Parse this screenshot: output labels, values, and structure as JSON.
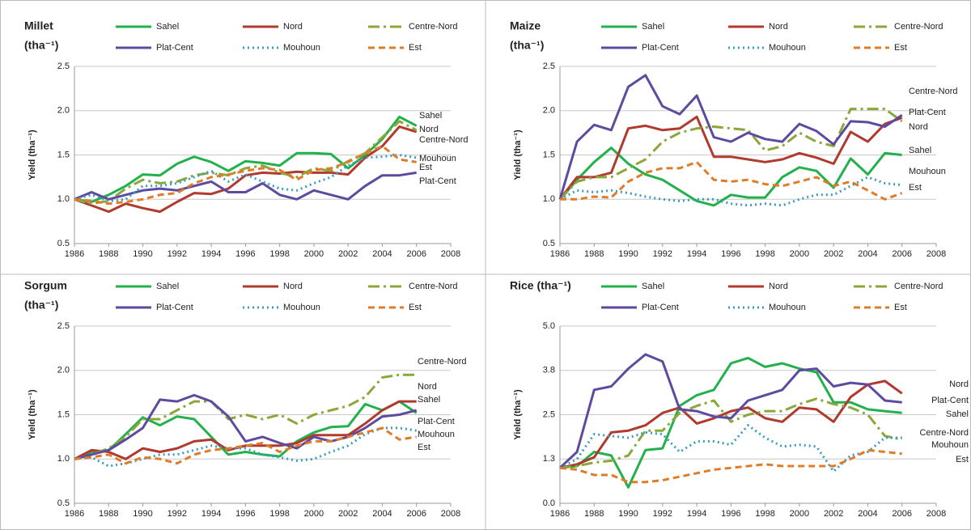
{
  "chart_data": [
    {
      "type": "line",
      "title": "Millet",
      "subtitle": "(tha⁻¹)",
      "y_label": "Yield (tha⁻¹)",
      "x": [
        1986,
        1987,
        1988,
        1989,
        1990,
        1991,
        1992,
        1993,
        1994,
        1995,
        1996,
        1997,
        1998,
        1999,
        2000,
        2001,
        2002,
        2003,
        2004,
        2005,
        2006
      ],
      "xlim": [
        1986,
        2008
      ],
      "xticks": [
        1986,
        1988,
        1990,
        1992,
        1994,
        1996,
        1998,
        2000,
        2002,
        2004,
        2006,
        2008
      ],
      "ylim": [
        0.5,
        2.5
      ],
      "yticks": [
        0.5,
        {
          "value": 1,
          "label": "1.0"
        },
        1.5,
        {
          "value": 2,
          "label": "2.0"
        },
        2.5
      ],
      "grid": true,
      "series": [
        {
          "name": "Sahel",
          "color": "#22b14c",
          "style": "solid",
          "values": [
            1.0,
            0.97,
            1.05,
            1.15,
            1.28,
            1.27,
            1.4,
            1.48,
            1.42,
            1.32,
            1.43,
            1.41,
            1.38,
            1.52,
            1.52,
            1.51,
            1.35,
            1.5,
            1.68,
            1.93,
            1.83
          ]
        },
        {
          "name": "Nord",
          "color": "#b03a2e",
          "style": "solid",
          "values": [
            1.0,
            0.93,
            0.86,
            0.95,
            0.9,
            0.86,
            0.97,
            1.07,
            1.06,
            1.12,
            1.27,
            1.3,
            1.29,
            1.31,
            1.3,
            1.3,
            1.28,
            1.47,
            1.6,
            1.82,
            1.76
          ]
        },
        {
          "name": "Centre-Nord",
          "color": "#8aa83a",
          "style": "dashdot",
          "values": [
            1.0,
            0.95,
            0.98,
            1.12,
            1.22,
            1.18,
            1.2,
            1.27,
            1.3,
            1.27,
            1.35,
            1.38,
            1.3,
            1.25,
            1.35,
            1.32,
            1.43,
            1.52,
            1.7,
            1.88,
            1.78
          ]
        },
        {
          "name": "Plat-Cent",
          "color": "#5e4a9e",
          "style": "solid",
          "values": [
            1.0,
            1.08,
            1.0,
            1.05,
            1.1,
            1.12,
            1.1,
            1.15,
            1.2,
            1.08,
            1.08,
            1.18,
            1.05,
            1.0,
            1.1,
            1.05,
            1.0,
            1.15,
            1.27,
            1.27,
            1.3
          ]
        },
        {
          "name": "Mouhoun",
          "color": "#3a9cc0",
          "style": "dotted",
          "values": [
            1.0,
            1.05,
            0.98,
            1.0,
            1.15,
            1.15,
            1.18,
            1.25,
            1.32,
            1.2,
            1.28,
            1.2,
            1.12,
            1.1,
            1.18,
            1.25,
            1.38,
            1.47,
            1.48,
            1.5,
            1.47
          ]
        },
        {
          "name": "Est",
          "color": "#e07b28",
          "style": "dashed",
          "values": [
            1.0,
            0.98,
            0.95,
            0.97,
            1.0,
            1.05,
            1.07,
            1.18,
            1.25,
            1.28,
            1.32,
            1.35,
            1.33,
            1.22,
            1.33,
            1.35,
            1.42,
            1.52,
            1.6,
            1.45,
            1.42
          ]
        }
      ],
      "annotations": [
        "Sahel",
        "Nord",
        "Centre-Nord",
        "Mouhoun",
        "Est",
        "Plat-Cent"
      ]
    },
    {
      "type": "line",
      "title": "Maize",
      "subtitle": "(tha⁻¹)",
      "y_label": "Yield (tha⁻¹)",
      "x": [
        1986,
        1987,
        1988,
        1989,
        1990,
        1991,
        1992,
        1993,
        1994,
        1995,
        1996,
        1997,
        1998,
        1999,
        2000,
        2001,
        2002,
        2003,
        2004,
        2005,
        2006
      ],
      "xlim": [
        1986,
        2008
      ],
      "xticks": [
        1986,
        1988,
        1990,
        1992,
        1994,
        1996,
        1998,
        2000,
        2002,
        2004,
        2006,
        2008
      ],
      "ylim": [
        0.5,
        2.5
      ],
      "yticks": [
        0.5,
        {
          "value": 1,
          "label": "1.0"
        },
        1.5,
        {
          "value": 2,
          "label": "2.0"
        },
        2.5
      ],
      "grid": true,
      "series": [
        {
          "name": "Sahel",
          "color": "#22b14c",
          "style": "solid",
          "values": [
            1.0,
            1.22,
            1.42,
            1.58,
            1.4,
            1.28,
            1.22,
            1.1,
            0.98,
            0.93,
            1.05,
            1.02,
            1.02,
            1.25,
            1.36,
            1.32,
            1.13,
            1.46,
            1.28,
            1.52,
            1.5
          ]
        },
        {
          "name": "Nord",
          "color": "#b03a2e",
          "style": "solid",
          "values": [
            1.0,
            1.25,
            1.25,
            1.3,
            1.8,
            1.83,
            1.78,
            1.8,
            1.93,
            1.48,
            1.48,
            1.45,
            1.42,
            1.45,
            1.52,
            1.47,
            1.4,
            1.76,
            1.65,
            1.85,
            1.92
          ]
        },
        {
          "name": "Centre-Nord",
          "color": "#8aa83a",
          "style": "dashdot",
          "values": [
            1.0,
            1.2,
            1.25,
            1.25,
            1.35,
            1.45,
            1.65,
            1.75,
            1.8,
            1.82,
            1.8,
            1.78,
            1.55,
            1.6,
            1.75,
            1.65,
            1.6,
            2.02,
            2.02,
            2.02,
            1.88
          ]
        },
        {
          "name": "Plat-Cent",
          "color": "#5e4a9e",
          "style": "solid",
          "values": [
            1.0,
            1.65,
            1.84,
            1.78,
            2.27,
            2.4,
            2.05,
            1.96,
            2.17,
            1.7,
            1.65,
            1.75,
            1.68,
            1.65,
            1.85,
            1.77,
            1.62,
            1.88,
            1.87,
            1.82,
            1.95
          ]
        },
        {
          "name": "Mouhoun",
          "color": "#3a9cc0",
          "style": "dotted",
          "values": [
            1.0,
            1.1,
            1.08,
            1.1,
            1.07,
            1.03,
            1.0,
            0.98,
            1.0,
            1.0,
            0.95,
            0.93,
            0.95,
            0.93,
            1.0,
            1.05,
            1.05,
            1.15,
            1.25,
            1.18,
            1.16
          ]
        },
        {
          "name": "Est",
          "color": "#e07b28",
          "style": "dashed",
          "values": [
            1.0,
            1.0,
            1.03,
            1.02,
            1.2,
            1.3,
            1.35,
            1.35,
            1.42,
            1.22,
            1.2,
            1.22,
            1.17,
            1.15,
            1.2,
            1.25,
            1.15,
            1.2,
            1.1,
            1.0,
            1.07
          ]
        }
      ],
      "annotations": [
        "Centre-Nord",
        "Plat-Cent",
        "Nord",
        "Sahel",
        "Mouhoun",
        "Est"
      ]
    },
    {
      "type": "line",
      "title": "Sorgum",
      "subtitle": "(tha⁻¹)",
      "y_label": "Yield (tha⁻¹)",
      "x": [
        1986,
        1987,
        1988,
        1989,
        1990,
        1991,
        1992,
        1993,
        1994,
        1995,
        1996,
        1997,
        1998,
        1999,
        2000,
        2001,
        2002,
        2003,
        2004,
        2005,
        2006
      ],
      "xlim": [
        1986,
        2008
      ],
      "xticks": [
        1986,
        1988,
        1990,
        1992,
        1994,
        1996,
        1998,
        2000,
        2002,
        2004,
        2006,
        2008
      ],
      "ylim": [
        0.5,
        2.5
      ],
      "yticks": [
        0.5,
        {
          "value": 1,
          "label": "1.0"
        },
        1.5,
        {
          "value": 2,
          "label": "2.0"
        },
        2.5
      ],
      "grid": true,
      "series": [
        {
          "name": "Sahel",
          "color": "#22b14c",
          "style": "solid",
          "values": [
            1.0,
            1.08,
            1.1,
            1.28,
            1.47,
            1.38,
            1.48,
            1.45,
            1.25,
            1.05,
            1.08,
            1.05,
            1.03,
            1.2,
            1.3,
            1.36,
            1.37,
            1.62,
            1.55,
            1.65,
            1.52
          ]
        },
        {
          "name": "Nord",
          "color": "#b03a2e",
          "style": "solid",
          "values": [
            1.0,
            1.1,
            1.08,
            1.0,
            1.12,
            1.08,
            1.12,
            1.2,
            1.22,
            1.1,
            1.15,
            1.15,
            1.15,
            1.18,
            1.27,
            1.27,
            1.27,
            1.4,
            1.55,
            1.65,
            1.65
          ]
        },
        {
          "name": "Centre-Nord",
          "color": "#8aa83a",
          "style": "dashdot",
          "values": [
            1.0,
            1.05,
            1.12,
            1.25,
            1.45,
            1.45,
            1.55,
            1.65,
            1.65,
            1.45,
            1.5,
            1.45,
            1.5,
            1.4,
            1.5,
            1.55,
            1.6,
            1.7,
            1.92,
            1.95,
            1.95
          ]
        },
        {
          "name": "Plat-Cent",
          "color": "#5e4a9e",
          "style": "solid",
          "values": [
            1.0,
            1.05,
            1.1,
            1.22,
            1.35,
            1.67,
            1.65,
            1.72,
            1.65,
            1.48,
            1.2,
            1.25,
            1.18,
            1.12,
            1.25,
            1.2,
            1.25,
            1.35,
            1.48,
            1.5,
            1.55
          ]
        },
        {
          "name": "Mouhoun",
          "color": "#3a9cc0",
          "style": "dotted",
          "values": [
            1.0,
            1.02,
            0.92,
            0.95,
            1.0,
            1.05,
            1.05,
            1.1,
            1.15,
            1.12,
            1.12,
            1.05,
            1.02,
            0.98,
            1.0,
            1.08,
            1.15,
            1.28,
            1.35,
            1.35,
            1.32
          ]
        },
        {
          "name": "Est",
          "color": "#e07b28",
          "style": "dashed",
          "values": [
            1.0,
            1.02,
            1.05,
            0.95,
            1.02,
            1.0,
            0.95,
            1.05,
            1.1,
            1.12,
            1.15,
            1.18,
            1.08,
            1.15,
            1.2,
            1.2,
            1.25,
            1.3,
            1.35,
            1.22,
            1.25
          ]
        }
      ],
      "annotations": [
        "Centre-Nord",
        "Nord",
        "Sahel",
        "Plat-Cent",
        "Mouhoun",
        "Est"
      ]
    },
    {
      "type": "line",
      "title": "Rice (tha⁻¹)",
      "y_label": "Yield (tha⁻¹)",
      "x": [
        1986,
        1987,
        1988,
        1989,
        1990,
        1991,
        1992,
        1993,
        1994,
        1995,
        1996,
        1997,
        1998,
        1999,
        2000,
        2001,
        2002,
        2003,
        2004,
        2005,
        2006
      ],
      "xlim": [
        1986,
        2008
      ],
      "xticks": [
        1986,
        1988,
        1990,
        1992,
        1994,
        1996,
        1998,
        2000,
        2002,
        2004,
        2006,
        2008
      ],
      "ylim": [
        0,
        5
      ],
      "yticks": [
        {
          "value": 0,
          "label": "0.0"
        },
        {
          "value": 1.25,
          "label": "1.3"
        },
        2.5,
        {
          "value": 3.75,
          "label": "3.8"
        },
        {
          "value": 5,
          "label": "5.0"
        }
      ],
      "grid": true,
      "series": [
        {
          "name": "Sahel",
          "color": "#22b14c",
          "style": "solid",
          "values": [
            1.0,
            1.05,
            1.45,
            1.35,
            0.45,
            1.5,
            1.55,
            2.75,
            3.05,
            3.2,
            3.95,
            4.1,
            3.85,
            3.95,
            3.8,
            3.7,
            2.85,
            2.85,
            2.65,
            2.6,
            2.55
          ]
        },
        {
          "name": "Nord",
          "color": "#b03a2e",
          "style": "solid",
          "values": [
            1.0,
            1.1,
            1.3,
            2.0,
            2.05,
            2.2,
            2.55,
            2.7,
            2.25,
            2.4,
            2.6,
            2.7,
            2.4,
            2.3,
            2.7,
            2.65,
            2.3,
            3.0,
            3.35,
            3.45,
            3.1
          ]
        },
        {
          "name": "Centre-Nord",
          "color": "#8aa83a",
          "style": "dashdot",
          "values": [
            1.0,
            1.05,
            1.15,
            1.2,
            1.35,
            2.05,
            2.05,
            2.55,
            2.75,
            2.9,
            2.3,
            2.5,
            2.6,
            2.6,
            2.8,
            2.95,
            2.8,
            2.7,
            2.5,
            1.9,
            1.8
          ]
        },
        {
          "name": "Plat-Cent",
          "color": "#5e4a9e",
          "style": "solid",
          "values": [
            1.0,
            1.45,
            3.2,
            3.3,
            3.8,
            4.2,
            4.0,
            2.65,
            2.6,
            2.45,
            2.4,
            2.9,
            3.05,
            3.2,
            3.75,
            3.8,
            3.3,
            3.4,
            3.35,
            2.9,
            2.85
          ]
        },
        {
          "name": "Mouhoun",
          "color": "#3a9cc0",
          "style": "dotted",
          "values": [
            1.0,
            1.25,
            1.95,
            1.9,
            1.85,
            2.0,
            1.95,
            1.45,
            1.75,
            1.75,
            1.65,
            2.2,
            1.85,
            1.6,
            1.65,
            1.6,
            0.9,
            1.35,
            1.45,
            1.85,
            1.85
          ]
        },
        {
          "name": "Est",
          "color": "#e07b28",
          "style": "dashed",
          "values": [
            1.0,
            0.95,
            0.8,
            0.8,
            0.6,
            0.6,
            0.65,
            0.75,
            0.85,
            0.95,
            1.0,
            1.05,
            1.1,
            1.05,
            1.05,
            1.05,
            1.05,
            1.25,
            1.5,
            1.45,
            1.4
          ]
        }
      ],
      "annotations": [
        "Nord",
        "Plat-Cent",
        "Sahel",
        "Centre-Nord",
        "Mouhoun",
        "Est"
      ]
    }
  ]
}
